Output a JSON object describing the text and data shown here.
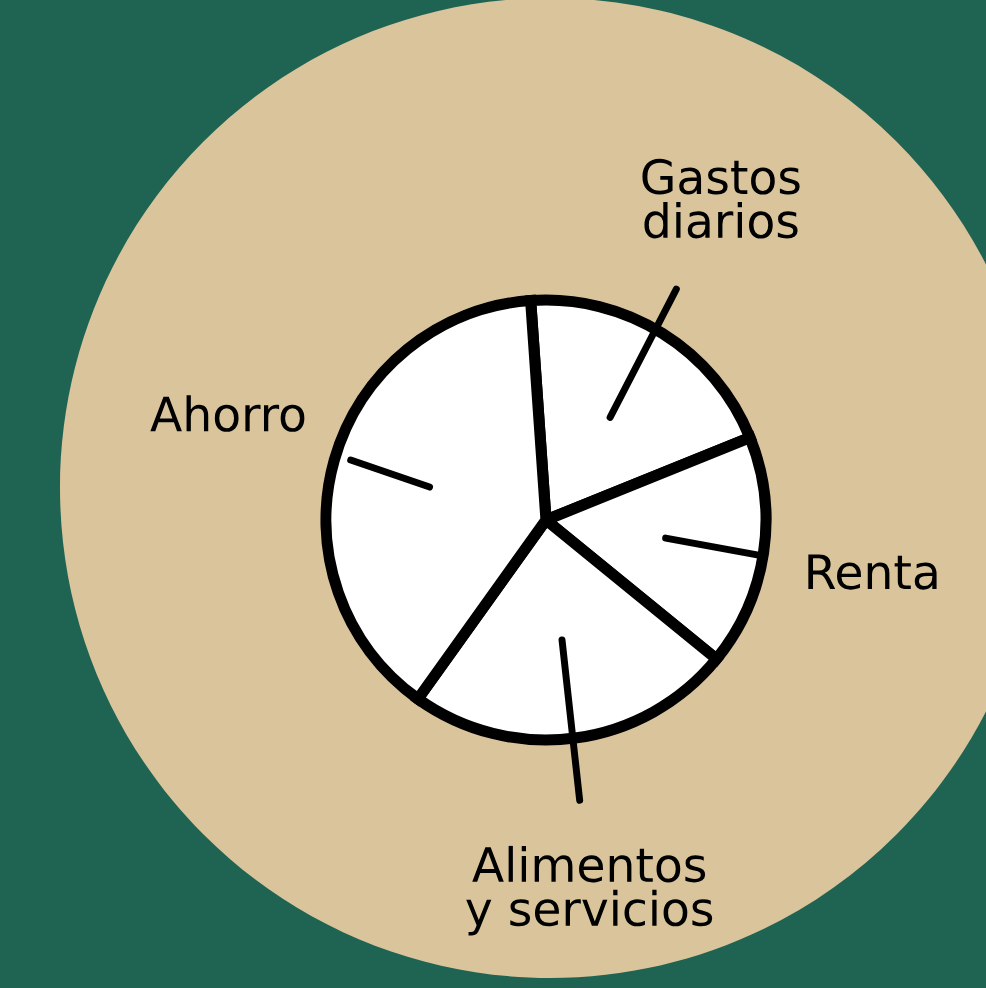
{
  "chart_data": {
    "type": "pie",
    "categories": [
      "Gastos\ndiarios",
      "Renta",
      "Alimentos\ny servicios",
      "Ahorro"
    ],
    "values": [
      20,
      17,
      24,
      39
    ],
    "colors": [
      "#ffffff",
      "#ffffff",
      "#ffffff",
      "#ffffff"
    ]
  }
}
